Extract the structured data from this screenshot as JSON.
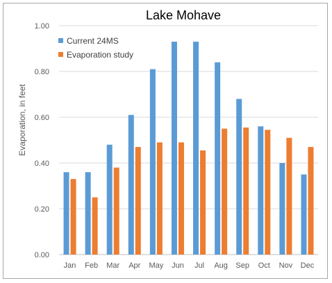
{
  "chart_data": {
    "type": "bar",
    "title": "Lake Mohave",
    "xlabel": "",
    "ylabel": "Evaporation, in feet",
    "ylim": [
      0,
      1.0
    ],
    "yticks": [
      "0.00",
      "0.20",
      "0.40",
      "0.60",
      "0.80",
      "1.00"
    ],
    "grid": true,
    "legend_position": "top-left",
    "categories": [
      "Jan",
      "Feb",
      "Mar",
      "Apr",
      "May",
      "Jun",
      "Jul",
      "Aug",
      "Sep",
      "Oct",
      "Nov",
      "Dec"
    ],
    "series": [
      {
        "name": "Current 24MS",
        "color": "#5b9bd5",
        "values": [
          0.36,
          0.36,
          0.48,
          0.61,
          0.81,
          0.93,
          0.93,
          0.84,
          0.68,
          0.56,
          0.4,
          0.35
        ]
      },
      {
        "name": "Evaporation study",
        "color": "#ed7d31",
        "values": [
          0.33,
          0.25,
          0.38,
          0.47,
          0.49,
          0.49,
          0.455,
          0.55,
          0.555,
          0.545,
          0.51,
          0.47
        ]
      }
    ]
  }
}
